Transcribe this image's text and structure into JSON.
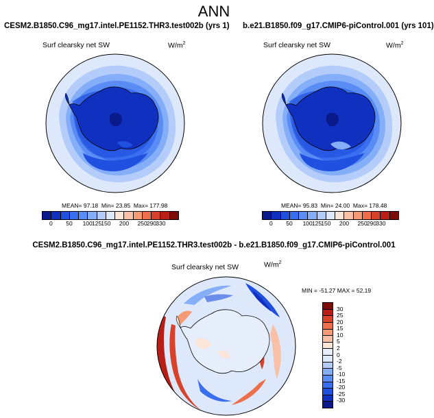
{
  "page_title": "ANN",
  "left_panel": {
    "title": "CESM2.B1850.C96_mg17.intel.PE1152.THR3.test002b (yrs 1)",
    "variable": "Surf clearsky net SW",
    "units": "W/m",
    "units_sup": "2",
    "mean": "MEAN=  97.18",
    "min": "Min=  23.85",
    "max": "Max=  177.98"
  },
  "right_panel": {
    "title": "b.e21.B1850.f09_g17.CMIP6-piControl.001 (yrs 101)",
    "variable": "Surf clearsky net SW",
    "units": "W/m",
    "units_sup": "2",
    "mean": "MEAN=  95.83",
    "min": "Min=  24.00",
    "max": "Max=  178.48"
  },
  "diff_panel": {
    "title": "CESM2.B1850.C96_mg17.intel.PE1152.THR3.test002b - b.e21.B1850.f09_g17.CMIP6-piControl.001",
    "variable": "Surf clearsky net SW",
    "units": "W/m",
    "units_sup": "2",
    "minmax": "MIN = -51.27  MAX =  52.19"
  },
  "abs_colorbar": {
    "colors": [
      "#0a1a8a",
      "#1030c0",
      "#2050e0",
      "#3a6ef0",
      "#5a8cf5",
      "#85aef8",
      "#b3ccfa",
      "#dde8fb",
      "#fbe4d8",
      "#f8c0a5",
      "#f49a74",
      "#ec6e4a",
      "#d8422a",
      "#b81e16",
      "#7d0b08"
    ],
    "tick_labels": [
      "0",
      "50",
      "100",
      "125",
      "150",
      "200",
      "250",
      "290",
      "330"
    ]
  },
  "diff_colorbar": {
    "colors": [
      "#7d0b08",
      "#b81e16",
      "#d8422a",
      "#ec6e4a",
      "#f49a74",
      "#f8c0a5",
      "#fbe4d8",
      "#e6eefc",
      "#dde8fb",
      "#b3ccfa",
      "#85aef8",
      "#5a8cf5",
      "#3a6ef0",
      "#2050e0",
      "#1030c0",
      "#0a1a8a"
    ],
    "tick_labels": [
      "30",
      "25",
      "20",
      "15",
      "10",
      "5",
      "2",
      "0",
      "-2",
      "-5",
      "-10",
      "-15",
      "-20",
      "-25",
      "-30"
    ]
  }
}
